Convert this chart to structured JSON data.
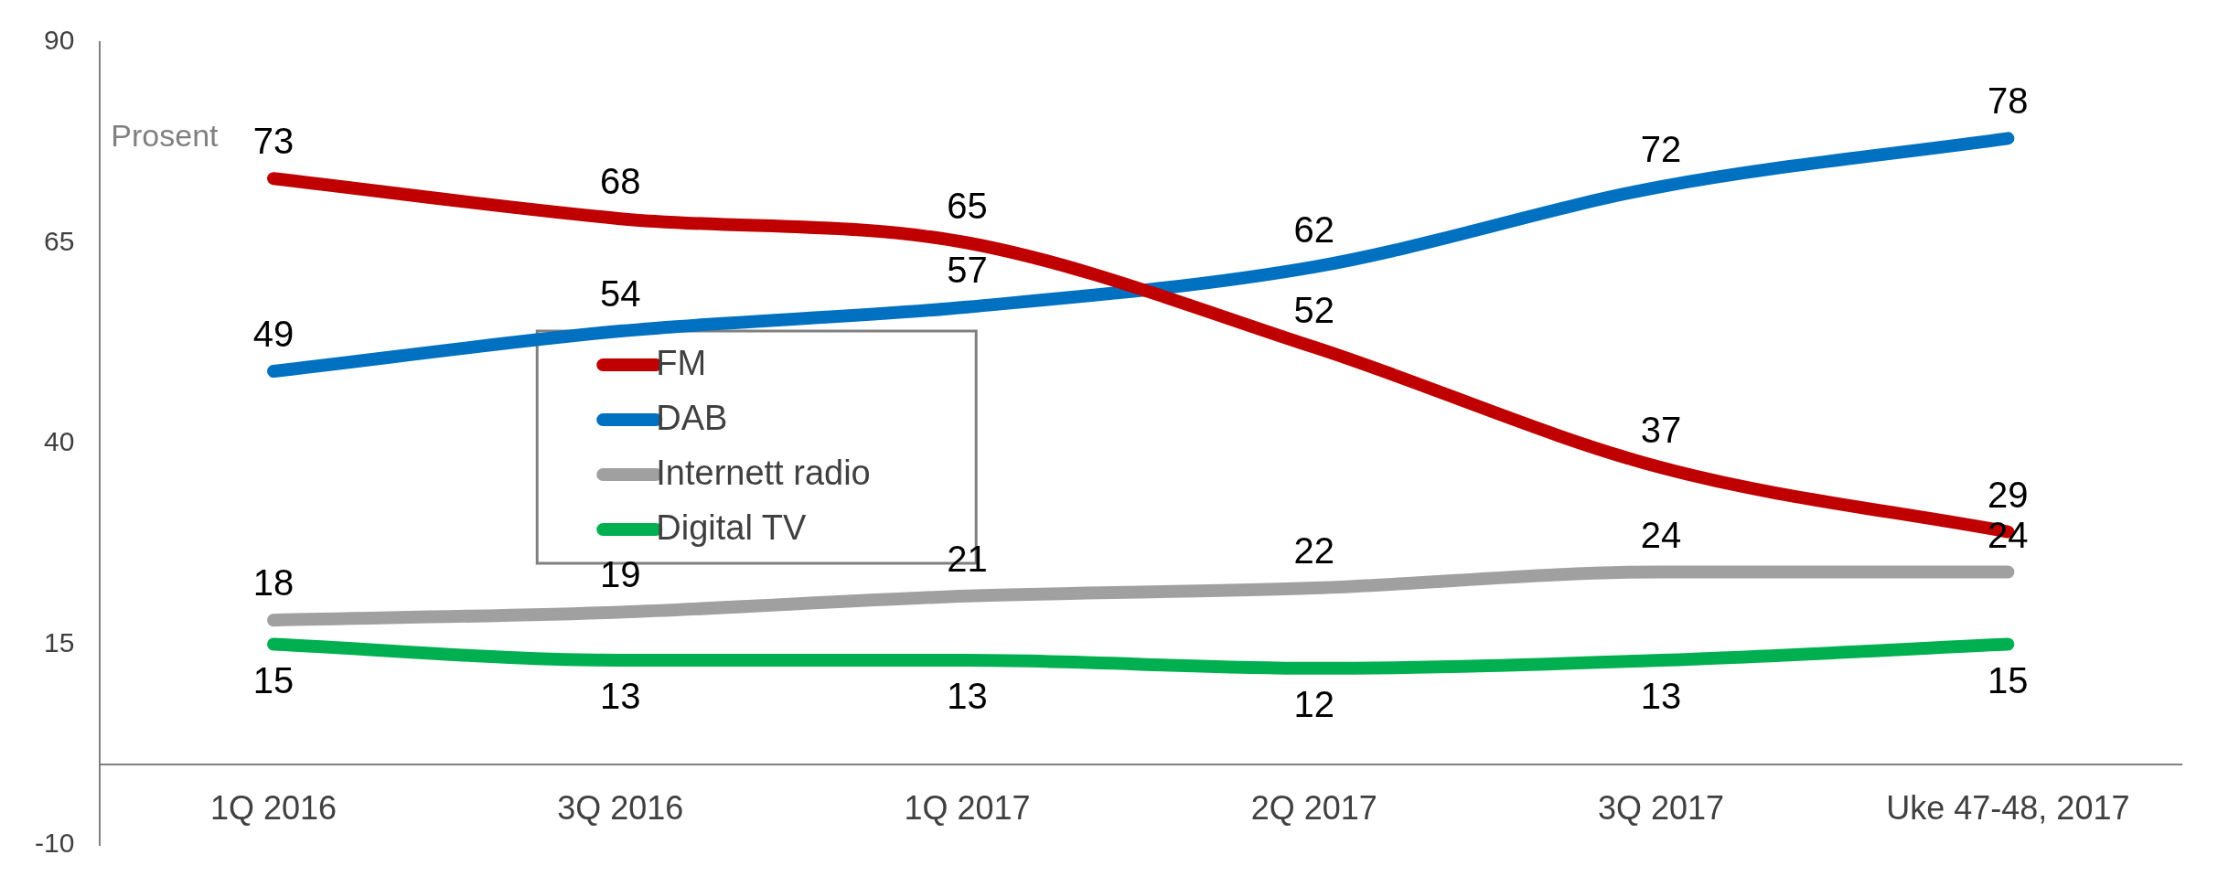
{
  "chart_data": {
    "type": "line",
    "ylabel": "Prosent",
    "categories": [
      "1Q 2016",
      "3Q 2016",
      "1Q 2017",
      "2Q 2017",
      "3Q 2017",
      "Uke 47-48, 2017"
    ],
    "series": [
      {
        "name": "FM",
        "color": "#c00000",
        "values": [
          73,
          68,
          65,
          52,
          37,
          29
        ]
      },
      {
        "name": "DAB",
        "color": "#0070c0",
        "values": [
          49,
          54,
          57,
          62,
          72,
          78
        ]
      },
      {
        "name": "Internett radio",
        "color": "#a0a0a0",
        "values": [
          18,
          19,
          21,
          22,
          24,
          24
        ]
      },
      {
        "name": "Digital TV",
        "color": "#00b050",
        "values": [
          15,
          13,
          13,
          12,
          13,
          15
        ]
      }
    ],
    "ylim": [
      -10,
      90
    ],
    "yticks": [
      -10,
      15,
      40,
      65,
      90
    ],
    "grid": false,
    "legend": "left",
    "marker": "none",
    "line_style": "solid",
    "data_labels": true
  }
}
